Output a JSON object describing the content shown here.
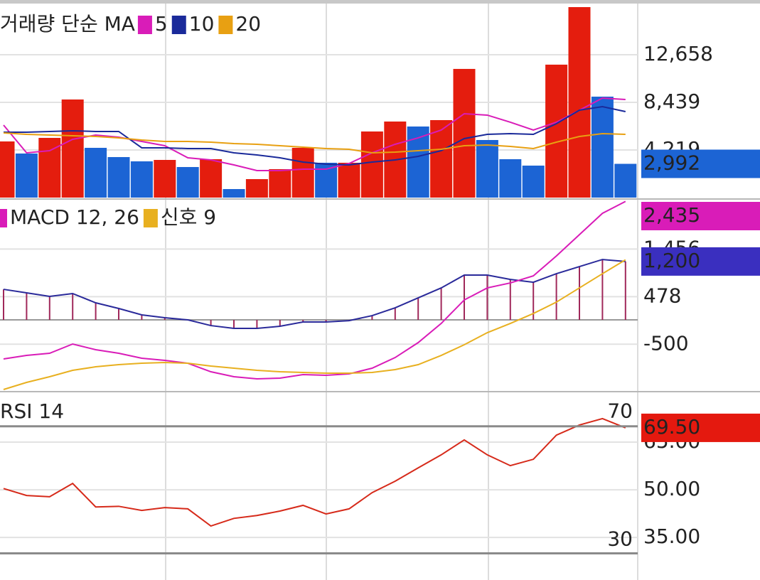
{
  "chart_data": [
    {
      "type": "bar",
      "title": "거래량 단순 MA",
      "ylim": [
        0,
        16880
      ],
      "yticks": [
        {
          "value": 4219,
          "label": "4,219"
        },
        {
          "value": 8439,
          "label": "8,439"
        },
        {
          "value": 12658,
          "label": "12,658"
        }
      ],
      "grid": true,
      "bars": {
        "values": [
          4977,
          3906,
          5292,
          8694,
          4410,
          3591,
          3213,
          3339,
          2709,
          3402,
          756,
          1638,
          2520,
          4410,
          3087,
          3087,
          5859,
          6741,
          6300,
          6867,
          11403,
          5103,
          3402,
          2835,
          11781,
          16880,
          8946,
          2992
        ],
        "colors": [
          "#e41d0e",
          "#1c64d4",
          "#e41d0e",
          "#e41d0e",
          "#1c64d4",
          "#1c64d4",
          "#1c64d4",
          "#e41d0e",
          "#1c64d4",
          "#e41d0e",
          "#1c64d4",
          "#e41d0e",
          "#e41d0e",
          "#e41d0e",
          "#1c64d4",
          "#e41d0e",
          "#e41d0e",
          "#e41d0e",
          "#1c64d4",
          "#e41d0e",
          "#e41d0e",
          "#1c64d4",
          "#1c64d4",
          "#1c64d4",
          "#e41d0e",
          "#e41d0e",
          "#1c64d4",
          "#1c64d4"
        ],
        "value_labels": [
          null,
          null,
          null,
          null,
          null,
          null,
          null,
          null,
          null,
          null,
          null,
          null,
          null,
          null,
          null,
          null,
          null,
          null,
          null,
          null,
          null,
          null,
          null,
          null,
          null,
          null,
          null,
          "2,992"
        ],
        "label_color": "#1c64d4"
      },
      "series": [
        {
          "name": "5",
          "color": "#d91cb8",
          "values": [
            6426,
            3969,
            4158,
            5166,
            5544,
            5355,
            4977,
            4599,
            3528,
            3339,
            2898,
            2394,
            2394,
            2520,
            2520,
            3024,
            3969,
            4725,
            5292,
            5985,
            7434,
            7308,
            6678,
            5985,
            6678,
            7749,
            8820,
            8694
          ]
        },
        {
          "name": "10",
          "color": "#1a2a9a",
          "values": [
            5796,
            5796,
            5859,
            5922,
            5859,
            5859,
            4410,
            4410,
            4347,
            4347,
            3969,
            3780,
            3528,
            3150,
            2961,
            2898,
            3150,
            3339,
            3654,
            4158,
            5229,
            5607,
            5670,
            5607,
            6552,
            7749,
            8064,
            7623
          ]
        },
        {
          "name": "20",
          "color": "#e8a012",
          "values": [
            5733,
            5607,
            5544,
            5481,
            5418,
            5292,
            5103,
            4977,
            4977,
            4914,
            4788,
            4725,
            4599,
            4473,
            4347,
            4284,
            3969,
            4032,
            4158,
            4284,
            4599,
            4662,
            4536,
            4347,
            4914,
            5418,
            5670,
            5607
          ]
        }
      ]
    },
    {
      "type": "macd",
      "ylim": [
        -1460,
        2440
      ],
      "yticks": [
        -500,
        478,
        {
          "value": 1456,
          "label": "1,456"
        }
      ],
      "grid": true,
      "histogram": {
        "color": "#a0285a",
        "line_color": "#2a2a9a",
        "values": [
          628,
          555,
          482,
          541,
          351,
          234,
          103,
          44,
          0,
          -117,
          -175,
          -175,
          -131,
          -44,
          -44,
          -15,
          87,
          248,
          453,
          657,
          920,
          920,
          832,
          774,
          949,
          1095,
          1241,
          1200
        ],
        "value_labels": [
          null,
          null,
          null,
          null,
          null,
          null,
          null,
          null,
          null,
          null,
          null,
          null,
          null,
          null,
          null,
          null,
          null,
          null,
          null,
          null,
          null,
          null,
          null,
          null,
          null,
          null,
          null,
          "1,200"
        ],
        "label_color": "#3a2fbf"
      },
      "series": [
        {
          "name": "MACD 12, 26",
          "color": "#d91cb8",
          "label_color": "#d91cb8",
          "values": [
            -803,
            -730,
            -686,
            -496,
            -613,
            -686,
            -788,
            -832,
            -891,
            -1066,
            -1168,
            -1212,
            -1197,
            -1124,
            -1139,
            -1110,
            -993,
            -774,
            -467,
            -73,
            409,
            657,
            759,
            905,
            1314,
            1752,
            2190,
            2435
          ],
          "value_labels": [
            null,
            null,
            null,
            null,
            null,
            null,
            null,
            null,
            null,
            null,
            null,
            null,
            null,
            null,
            null,
            null,
            null,
            null,
            null,
            null,
            null,
            null,
            null,
            null,
            null,
            null,
            null,
            "2,435"
          ]
        },
        {
          "name": "신호 9",
          "color": "#e8b020",
          "values": [
            -1431,
            -1285,
            -1168,
            -1037,
            -964,
            -920,
            -891,
            -876,
            -891,
            -949,
            -993,
            -1037,
            -1066,
            -1080,
            -1095,
            -1095,
            -1080,
            -1022,
            -920,
            -730,
            -511,
            -263,
            -73,
            131,
            365,
            657,
            949,
            1235
          ]
        }
      ]
    },
    {
      "type": "line",
      "title": "RSI 14",
      "ylim": [
        21.6,
        80
      ],
      "yticks": [
        {
          "value": 35,
          "label": "35.00"
        },
        {
          "value": 50,
          "label": "50.00"
        },
        {
          "value": 65,
          "label": "65.00"
        }
      ],
      "grid": true,
      "levels": [
        30,
        70
      ],
      "series": [
        {
          "color": "#d62a1a",
          "label_color": "#e4190f",
          "values": [
            50.4,
            48.2,
            47.8,
            52.0,
            44.6,
            44.8,
            43.5,
            44.4,
            44.0,
            38.6,
            41.0,
            41.9,
            43.3,
            45.1,
            42.4,
            44.0,
            49.1,
            52.7,
            56.9,
            61.0,
            65.7,
            61.0,
            57.6,
            59.6,
            67.2,
            70.4,
            72.4,
            69.5
          ],
          "value_labels": [
            null,
            null,
            null,
            null,
            null,
            null,
            null,
            null,
            null,
            null,
            null,
            null,
            null,
            null,
            null,
            null,
            null,
            null,
            null,
            null,
            null,
            null,
            null,
            null,
            null,
            null,
            null,
            "69.50"
          ]
        }
      ]
    }
  ]
}
